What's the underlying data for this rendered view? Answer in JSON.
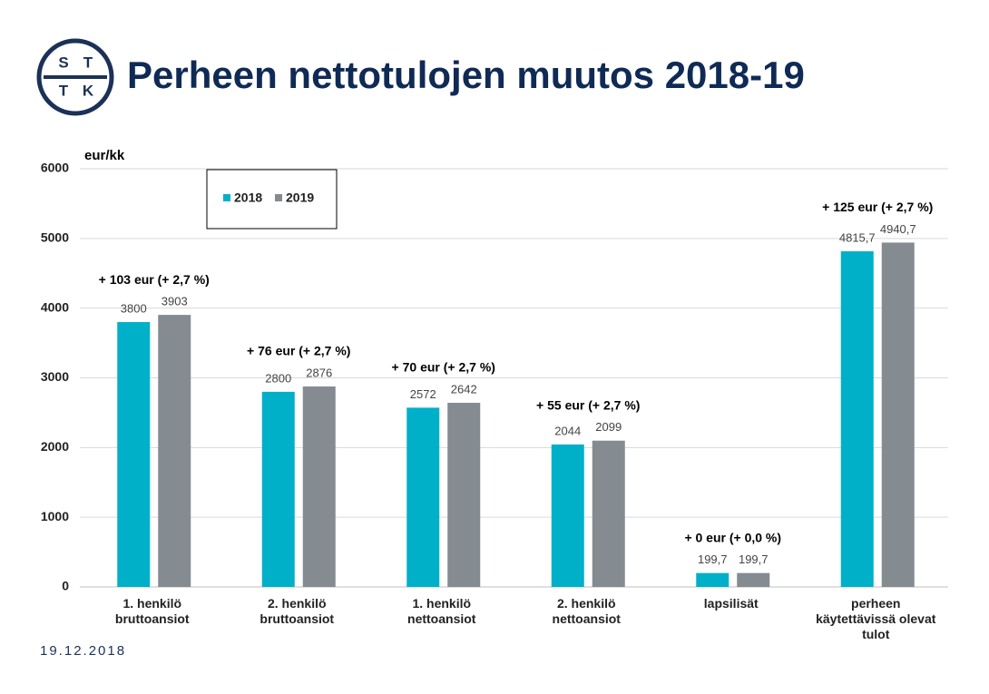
{
  "logo": {
    "letters": [
      "S",
      "T",
      "T",
      "K"
    ]
  },
  "footer": {
    "date": "19.12.2018"
  },
  "chart_data": {
    "type": "bar",
    "title": "Perheen nettotulojen muutos 2018-19",
    "y_label": "eur/kk",
    "categories": [
      "1. henkilö\nbruttoansiot",
      "2. henkilö\nbruttoansiot",
      "1. henkilö\nnettoansiot",
      "2. henkilö\nnettoansiot",
      "lapsilisät",
      "perheen\nkäytettävissä olevat\ntulot"
    ],
    "series": [
      {
        "name": "2018",
        "color": "#00b0c8",
        "values": [
          3800,
          2800,
          2572,
          2044,
          199.7,
          4815.7
        ],
        "value_labels": [
          "3800",
          "2800",
          "2572",
          "2044",
          "199,7",
          "4815,7"
        ]
      },
      {
        "name": "2019",
        "color": "#848b91",
        "values": [
          3903,
          2876,
          2642,
          2099,
          199.7,
          4940.7
        ],
        "value_labels": [
          "3903",
          "2876",
          "2642",
          "2099",
          "199,7",
          "4940,7"
        ]
      }
    ],
    "annotations": [
      "+ 103 eur (+ 2,7 %)",
      "+ 76 eur (+ 2,7 %)",
      "+ 70 eur (+ 2,7 %)",
      "+ 55 eur (+ 2,7 %)",
      "+ 0 eur (+ 0,0 %)",
      "+ 125 eur (+ 2,7 %)"
    ],
    "ylim": [
      0,
      6000
    ],
    "yticks": [
      0,
      1000,
      2000,
      3000,
      4000,
      5000,
      6000
    ],
    "grid": true
  }
}
